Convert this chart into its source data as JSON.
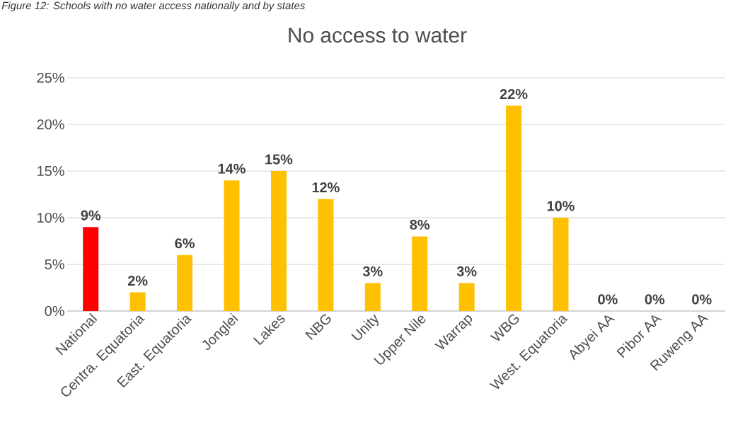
{
  "chart_data": {
    "type": "bar",
    "title": "No access to water",
    "annotations": [
      "Figure 12: Schools with no water access nationally and by states"
    ],
    "categories": [
      "National",
      "Centra. Equatoria",
      "East. Equatoria",
      "Jonglei",
      "Lakes",
      "NBG",
      "Unity",
      "Upper Nile",
      "Warrap",
      "WBG",
      "West. Equatoria",
      "Abyei AA",
      "Pibor AA",
      "Ruweng AA"
    ],
    "values": [
      9,
      2,
      6,
      14,
      15,
      12,
      3,
      8,
      3,
      22,
      10,
      0,
      0,
      0
    ],
    "value_labels": [
      "9%",
      "2%",
      "6%",
      "14%",
      "15%",
      "12%",
      "3%",
      "8%",
      "3%",
      "22%",
      "10%",
      "0%",
      "0%",
      "0%"
    ],
    "colors": [
      "#ff0000",
      "#ffc000",
      "#ffc000",
      "#ffc000",
      "#ffc000",
      "#ffc000",
      "#ffc000",
      "#ffc000",
      "#ffc000",
      "#ffc000",
      "#ffc000",
      "#ffc000",
      "#ffc000",
      "#ffc000"
    ],
    "ylim": [
      0,
      25
    ],
    "yticks": [
      {
        "value": 0,
        "label": "0%"
      },
      {
        "value": 5,
        "label": "5%"
      },
      {
        "value": 10,
        "label": "10%"
      },
      {
        "value": 15,
        "label": "15%"
      },
      {
        "value": 20,
        "label": "20%"
      },
      {
        "value": 25,
        "label": "25%"
      }
    ],
    "grid": "y"
  }
}
